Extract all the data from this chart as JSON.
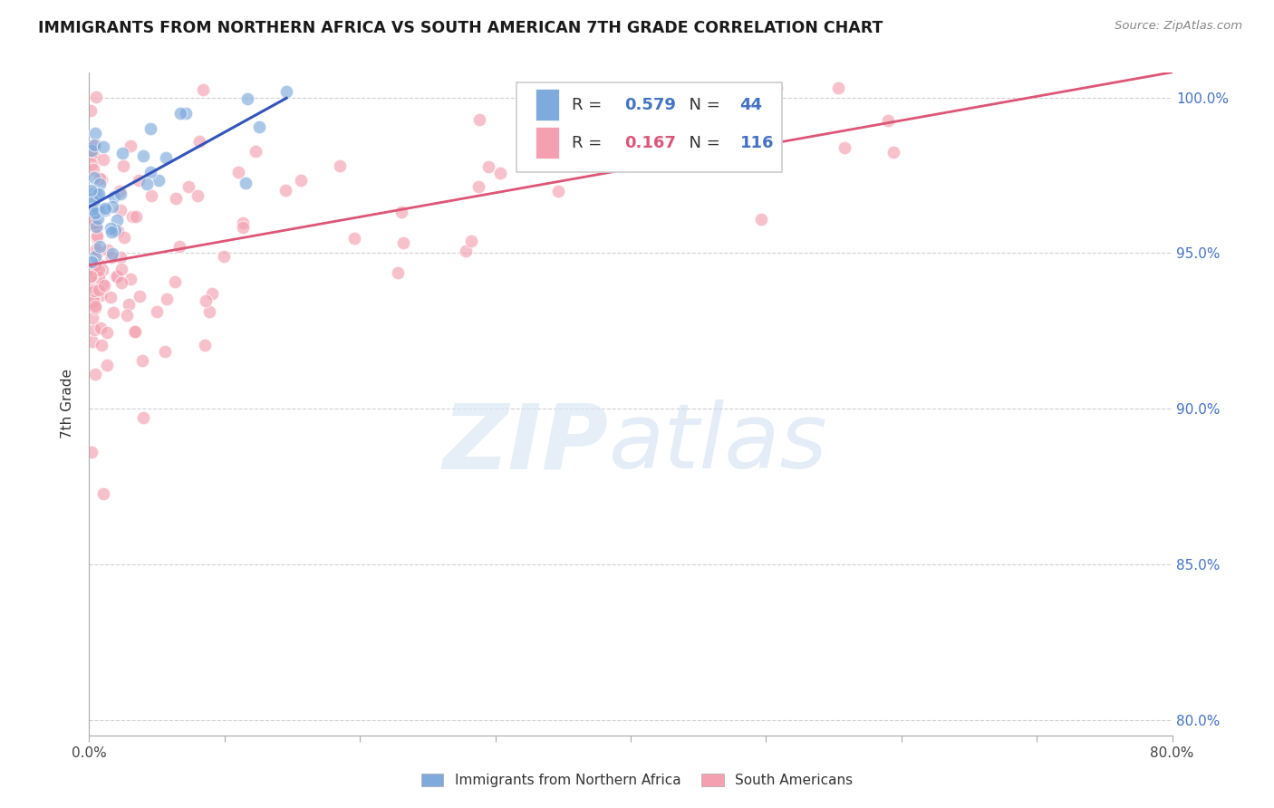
{
  "title": "IMMIGRANTS FROM NORTHERN AFRICA VS SOUTH AMERICAN 7TH GRADE CORRELATION CHART",
  "source": "Source: ZipAtlas.com",
  "ylabel": "7th Grade",
  "xlim": [
    0.0,
    0.8
  ],
  "ylim": [
    0.795,
    1.008
  ],
  "xticks": [
    0.0,
    0.1,
    0.2,
    0.3,
    0.4,
    0.5,
    0.6,
    0.7,
    0.8
  ],
  "xticklabels": [
    "0.0%",
    "",
    "",
    "",
    "",
    "",
    "",
    "",
    "80.0%"
  ],
  "ytick_positions": [
    0.8,
    0.85,
    0.9,
    0.95,
    1.0
  ],
  "ytick_labels": [
    "80.0%",
    "85.0%",
    "90.0%",
    "95.0%",
    "100.0%"
  ],
  "legend1_R": "0.579",
  "legend1_N": "44",
  "legend2_R": "0.167",
  "legend2_N": "116",
  "blue_color": "#7eaadc",
  "pink_color": "#f4a0b0",
  "blue_line_color": "#3355bb",
  "pink_line_color": "#dd5577",
  "blue_marker_color": "#6699cc",
  "pink_marker_color": "#ff99aa"
}
